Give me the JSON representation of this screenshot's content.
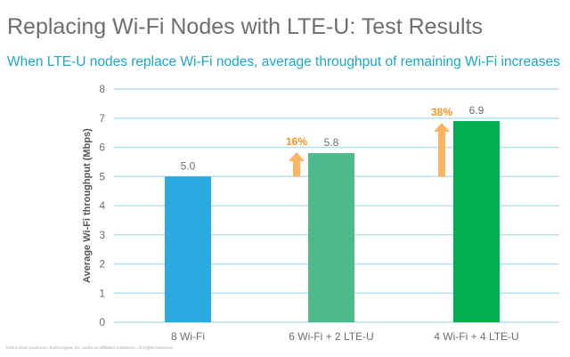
{
  "title": "Replacing Wi-Fi Nodes with LTE-U: Test Results",
  "subtitle": "When LTE-U nodes replace Wi-Fi nodes, average throughput of remaining Wi-Fi increases",
  "footer": "©2013-2015 Qualcomm Technologies, Inc. and/or its affiliated companies. All Rights Reserved.",
  "chart_data": {
    "type": "bar",
    "categories": [
      "8 Wi-Fi",
      "6 Wi-Fi + 2 LTE-U",
      "4 Wi-Fi + 4 LTE-U"
    ],
    "values": [
      5.0,
      5.8,
      6.9
    ],
    "value_labels": [
      "5.0",
      "5.8",
      "6.9"
    ],
    "bar_colors": [
      "#29abe2",
      "#4cba8a",
      "#00b050"
    ],
    "increase_labels": [
      "",
      "16%",
      "38%"
    ],
    "increase_color": "#f7931e",
    "arrow_color": "#fbb45f",
    "ylabel": "Average Wi-Fi throughput (Mbps)",
    "xlabel": "",
    "ylim": [
      0,
      8
    ],
    "yticks": [
      "0",
      "1",
      "2",
      "3",
      "4",
      "5",
      "6",
      "7",
      "8"
    ],
    "grid": true,
    "grid_color": "#b7e1ef"
  }
}
